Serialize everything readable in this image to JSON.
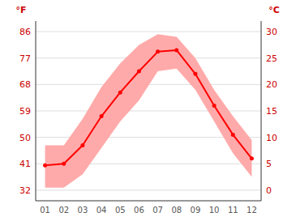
{
  "chart_data": {
    "type": "line",
    "categories": [
      "01",
      "02",
      "03",
      "04",
      "05",
      "06",
      "07",
      "08",
      "09",
      "10",
      "11",
      "12"
    ],
    "series": [
      {
        "type": "band",
        "color": "#ffaaaa",
        "low": [
          0.5,
          0.5,
          3.0,
          8.0,
          13.0,
          17.0,
          22.5,
          23.0,
          19.0,
          13.0,
          7.0,
          2.5
        ],
        "high": [
          8.5,
          8.5,
          13.5,
          19.5,
          24.0,
          27.5,
          29.5,
          29.0,
          25.0,
          19.0,
          14.0,
          9.5
        ]
      },
      {
        "type": "line",
        "color": "#ff0000",
        "marker": "circle",
        "values": [
          4.7,
          5.0,
          8.5,
          14.0,
          18.5,
          22.5,
          26.2,
          26.5,
          22.0,
          16.0,
          10.5,
          6.0
        ]
      }
    ],
    "ylabel": "°C",
    "ylim": [
      -2,
      32
    ],
    "yticks": [
      0,
      5,
      10,
      15,
      20,
      25,
      30
    ],
    "y2label": "°F",
    "y2lim": [
      28.4,
      89.6
    ],
    "y2ticks": [
      32,
      41,
      50,
      59,
      68,
      77,
      86
    ],
    "grid": true
  }
}
